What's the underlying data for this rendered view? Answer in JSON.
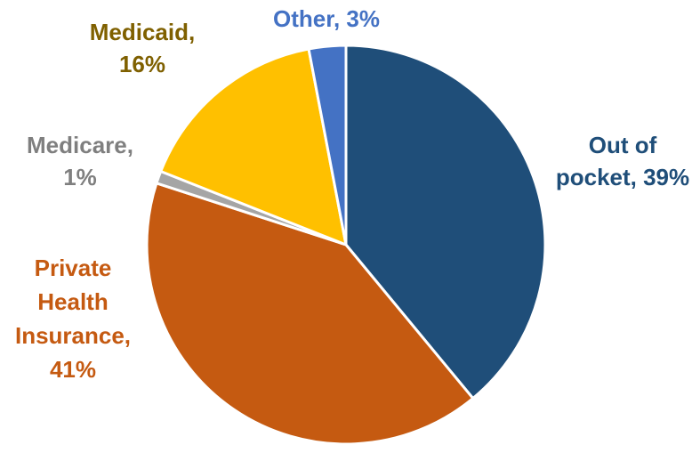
{
  "chart_data": {
    "type": "pie",
    "title": "",
    "start_angle_deg": 0,
    "direction": "clockwise",
    "slices": [
      {
        "name": "Out of pocket",
        "value": 39,
        "color": "#1F4E79",
        "label_lines": [
          "Out of",
          "pocket, 39%"
        ],
        "label_color": "#1F4E79"
      },
      {
        "name": "Private Health Insurance",
        "value": 41,
        "color": "#C55A11",
        "label_lines": [
          "Private",
          "Health",
          "Insurance,",
          "41%"
        ],
        "label_color": "#C55A11"
      },
      {
        "name": "Medicare",
        "value": 1,
        "color": "#A5A5A5",
        "label_lines": [
          "Medicare,",
          "1%"
        ],
        "label_color": "#7F7F7F"
      },
      {
        "name": "Medicaid",
        "value": 16,
        "color": "#FFC000",
        "label_lines": [
          "Medicaid,",
          "16%"
        ],
        "label_color": "#7F6000"
      },
      {
        "name": "Other",
        "value": 3,
        "color": "#4472C4",
        "label_lines": [
          "Other, 3%"
        ],
        "label_color": "#4472C4"
      }
    ]
  }
}
